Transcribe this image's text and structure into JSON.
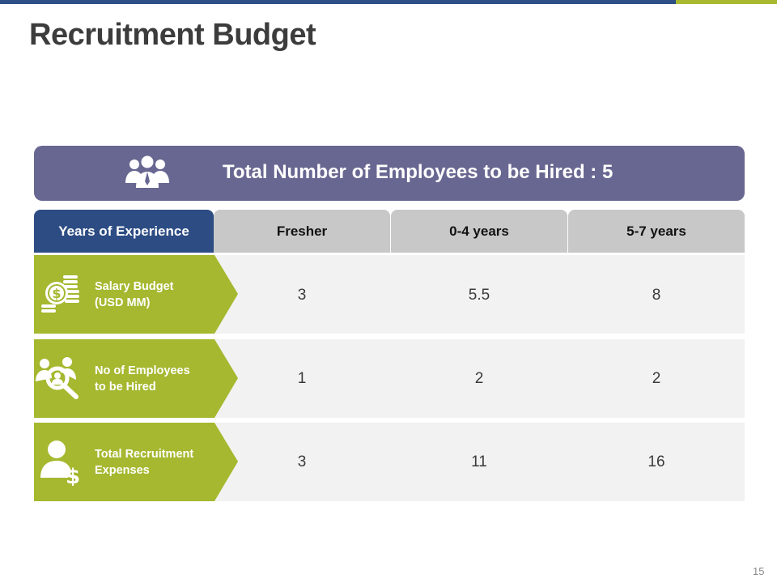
{
  "slide": {
    "title": "Recruitment Budget",
    "page_number": "15",
    "accent_colors": {
      "blue": "#2d4f86",
      "green": "#a8b92f",
      "banner": "#686791"
    }
  },
  "banner": {
    "text": "Total Number of Employees to be Hired : 5",
    "icon": "people-group-icon"
  },
  "table": {
    "header_label": "Years of Experience",
    "columns": [
      "Fresher",
      "0-4 years",
      "5-7 years"
    ],
    "rows": [
      {
        "label_line1": "Salary Budget",
        "label_line2": "(USD MM)",
        "icon": "money-coins-icon",
        "values": [
          "3",
          "5.5",
          "8"
        ]
      },
      {
        "label_line1": "No of Employees",
        "label_line2": "to be Hired",
        "icon": "people-search-icon",
        "values": [
          "1",
          "2",
          "2"
        ]
      },
      {
        "label_line1": "Total Recruitment",
        "label_line2": "Expenses",
        "icon": "person-dollar-icon",
        "values": [
          "3",
          "11",
          "16"
        ]
      }
    ]
  }
}
